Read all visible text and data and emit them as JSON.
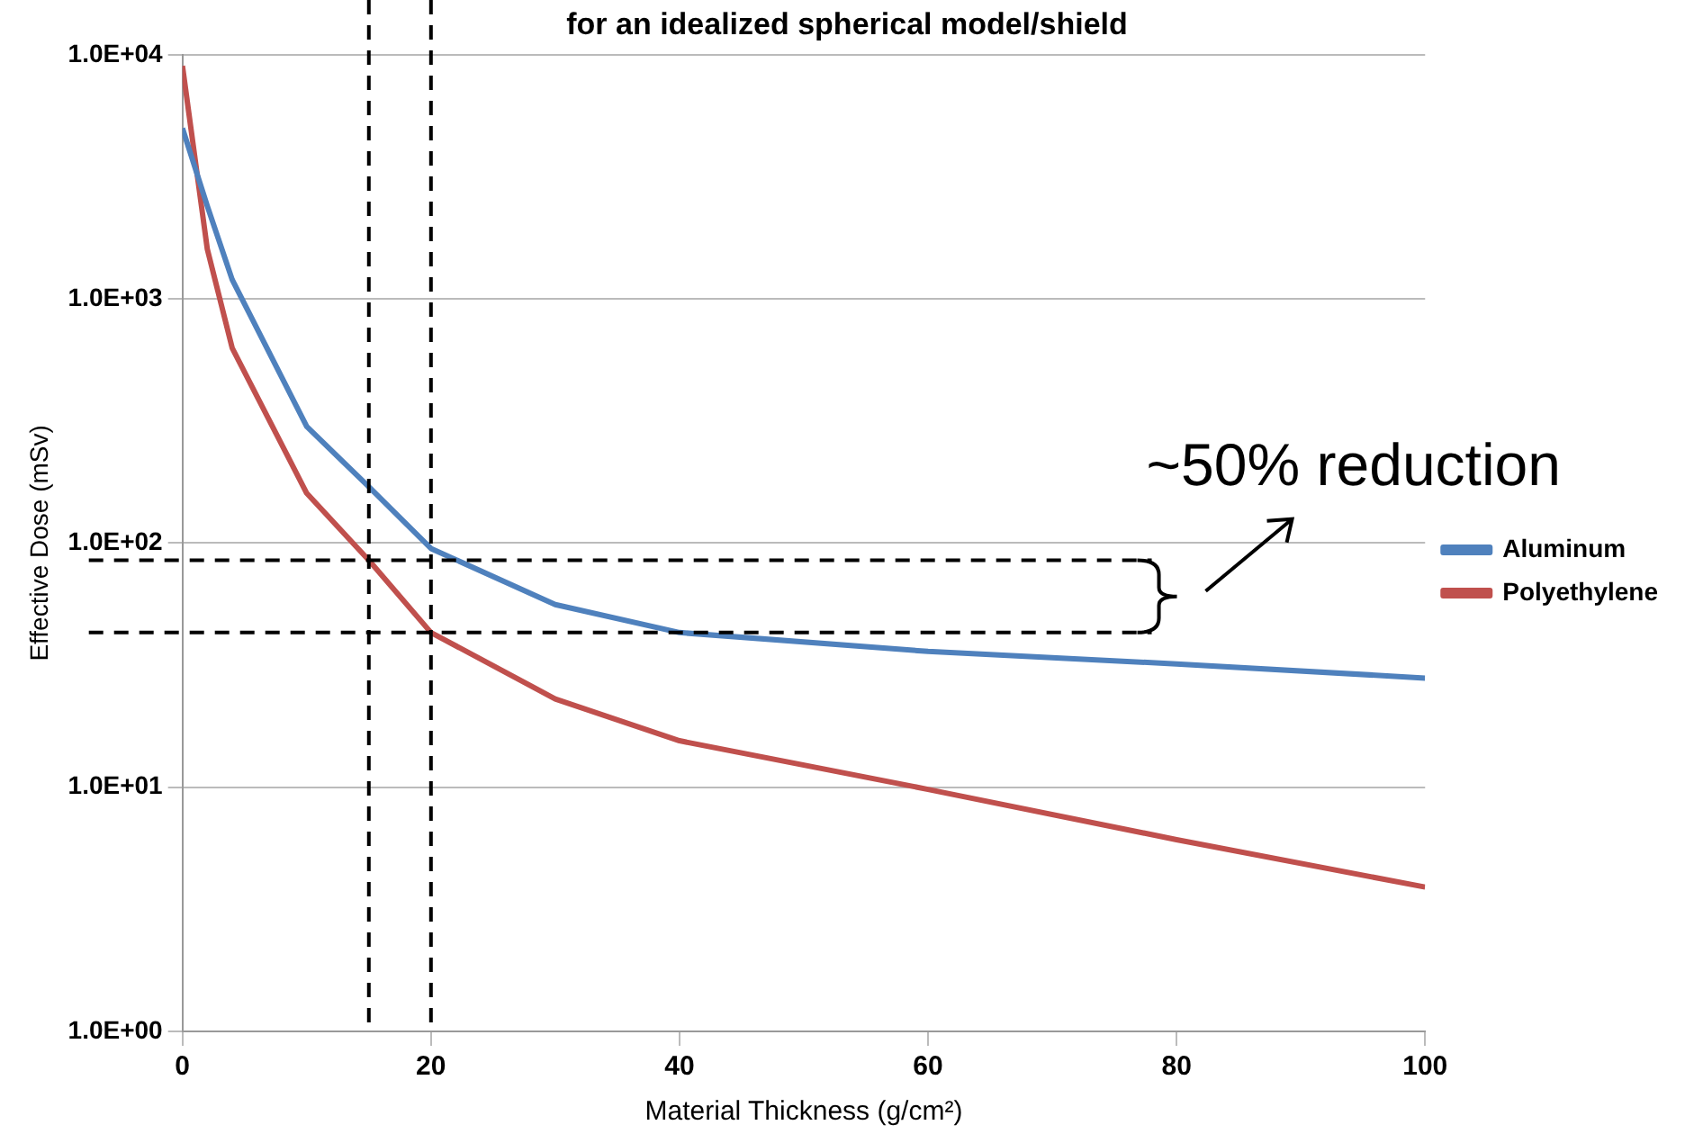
{
  "chart_data": {
    "type": "line",
    "title": "for an idealized spherical model/shield",
    "xlabel": "Material Thickness (g/cm²)",
    "ylabel": "Effective Dose (mSv)",
    "xlim": [
      0,
      100
    ],
    "xticks": [
      0,
      20,
      40,
      60,
      80,
      100
    ],
    "ylim": [
      1,
      10000
    ],
    "log": "y",
    "yticks": [
      {
        "value": 1,
        "label": "1.0E+00"
      },
      {
        "value": 10,
        "label": "1.0E+01"
      },
      {
        "value": 100,
        "label": "1.0E+02"
      },
      {
        "value": 1000,
        "label": "1.0E+03"
      },
      {
        "value": 10000,
        "label": "1.0E+04"
      }
    ],
    "grid": "y",
    "legend": "right",
    "marker": "none",
    "line_style": "solid",
    "x": [
      0,
      2,
      4,
      10,
      15,
      20,
      30,
      40,
      60,
      80,
      100
    ],
    "series": [
      {
        "name": "Aluminum",
        "color": "#4f81bd",
        "values": [
          5000,
          2400,
          1200,
          300,
          170,
          95,
          56,
          43,
          36,
          32,
          28
        ]
      },
      {
        "name": "Polyethylene",
        "color": "#c0504d",
        "values": [
          9000,
          1600,
          630,
          160,
          85,
          43,
          23,
          15.5,
          9.8,
          6.1,
          3.9
        ]
      }
    ],
    "ref_lines": [
      {
        "axis": "x",
        "value": 15,
        "color": "#000000",
        "line_style": "dashed"
      },
      {
        "axis": "x",
        "value": 20,
        "color": "#000000",
        "line_style": "dashed"
      },
      {
        "axis": "y",
        "value": 85,
        "color": "#000000",
        "line_style": "dashed"
      },
      {
        "axis": "y",
        "value": 43,
        "color": "#000000",
        "line_style": "dashed"
      }
    ],
    "annotations": [
      {
        "text": "~50% reduction",
        "x": 78,
        "y": 85
      }
    ]
  }
}
